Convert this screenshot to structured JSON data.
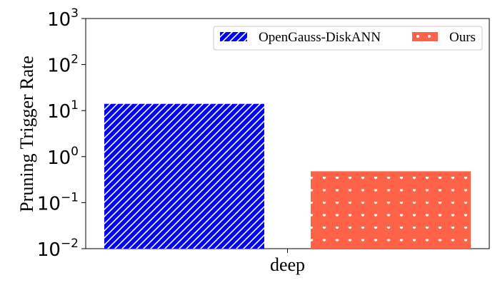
{
  "chart_data": {
    "type": "bar",
    "yscale": "log",
    "ylabel": "Pruning Trigger Rate",
    "xlabel": "",
    "categories": [
      "deep"
    ],
    "ylim": [
      0.01,
      1000
    ],
    "yticks": [
      {
        "value": 0.01,
        "base": "10",
        "exp": "−2"
      },
      {
        "value": 0.1,
        "base": "10",
        "exp": "−1"
      },
      {
        "value": 1,
        "base": "10",
        "exp": "0"
      },
      {
        "value": 10,
        "base": "10",
        "exp": "1"
      },
      {
        "value": 100,
        "base": "10",
        "exp": "2"
      },
      {
        "value": 1000,
        "base": "10",
        "exp": "3"
      }
    ],
    "series": [
      {
        "name": "OpenGauss-DiskANN",
        "values": [
          14
        ],
        "color": "#0000ff",
        "hatch": "diagonal-lines"
      },
      {
        "name": "Ours",
        "values": [
          0.48
        ],
        "color": "#ff6347",
        "hatch": "dots"
      }
    ],
    "legend": {
      "position": "top-right",
      "columns": 2
    },
    "grid": false
  }
}
